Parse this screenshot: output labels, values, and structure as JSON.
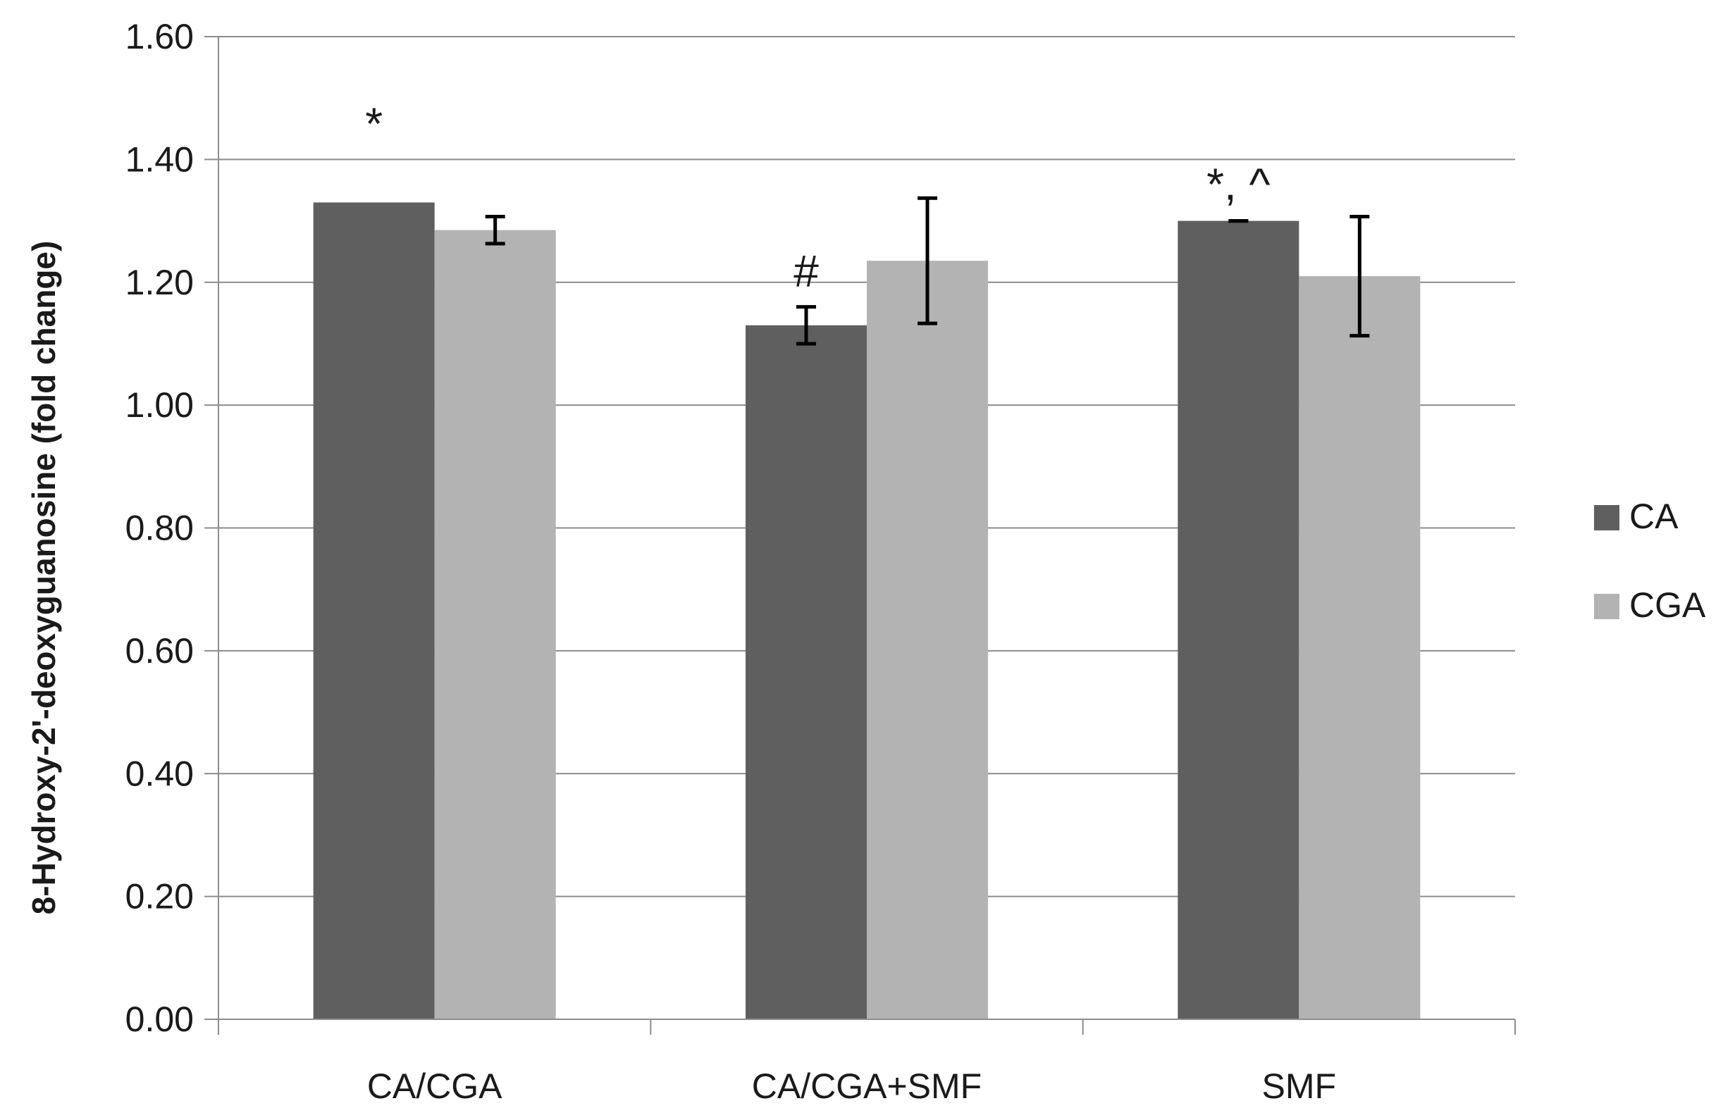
{
  "chart_data": {
    "type": "bar",
    "title": "",
    "xlabel": "",
    "ylabel": "8-Hydroxy-2'-deoxyguanosine (fold change)",
    "ylim": [
      0,
      1.6
    ],
    "yticks": [
      0.0,
      0.2,
      0.4,
      0.6,
      0.8,
      1.0,
      1.2,
      1.4,
      1.6
    ],
    "ytick_labels": [
      "0.00",
      "0.20",
      "0.40",
      "0.60",
      "0.80",
      "1.00",
      "1.20",
      "1.40",
      "1.60"
    ],
    "grid": true,
    "legend_position": "right",
    "categories": [
      "CA/CGA",
      "CA/CGA+SMF",
      "SMF"
    ],
    "series": [
      {
        "name": "CA",
        "color": "#5f5f5f",
        "values": [
          1.33,
          1.13,
          1.3
        ],
        "errors": [
          null,
          0.03,
          0.0
        ]
      },
      {
        "name": "CGA",
        "color": "#b3b3b3",
        "values": [
          1.285,
          1.235,
          1.21
        ],
        "errors": [
          0.022,
          0.102,
          0.097
        ]
      }
    ],
    "annotations": [
      {
        "category": 0,
        "series": 0,
        "text": "*"
      },
      {
        "category": 1,
        "series": 0,
        "text": "#"
      },
      {
        "category": 2,
        "series": 0,
        "text": "*, ^"
      }
    ]
  }
}
